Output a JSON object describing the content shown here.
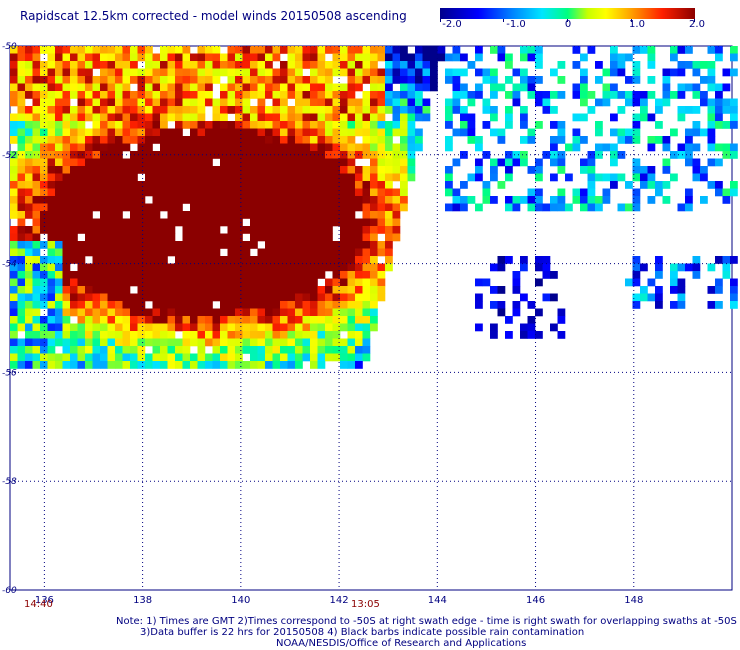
{
  "title": "Rapidscat 12.5km corrected - model winds 20150508 ascending",
  "colorbar": {
    "ticks": [
      {
        "label": "-2.0",
        "value": -2.0
      },
      {
        "label": "-1.0",
        "value": -1.0
      },
      {
        "label": "0",
        "value": 0.0
      },
      {
        "label": "1.0",
        "value": 1.0
      },
      {
        "label": "2.0",
        "value": 2.0
      }
    ],
    "min": -2.0,
    "max": 2.0,
    "colors": [
      "#00008b",
      "#0000ff",
      "#0080ff",
      "#00e5ff",
      "#00ff80",
      "#c8ff00",
      "#ffff00",
      "#ffa000",
      "#ff2000",
      "#8b0000"
    ]
  },
  "map": {
    "lon_range": [
      135.3,
      150.0
    ],
    "lat_range": [
      -60.0,
      -50.0
    ],
    "lon_ticks": [
      "136",
      "138",
      "140",
      "142",
      "144",
      "146",
      "148"
    ],
    "lat_ticks": [
      "-50",
      "-52",
      "-54",
      "-56",
      "-58",
      "-60"
    ],
    "grid_color": "#000080"
  },
  "time_labels": [
    {
      "text": "14:40",
      "lon": 136.0
    },
    {
      "text": "13:05",
      "lon": 142.4
    }
  ],
  "notes": {
    "line1": "Note: 1) Times are GMT 2)Times correspond to -50S at right swath edge - time is right swath for overlapping swaths at -50S",
    "line2": "3)Data buffer is 22 hrs for 20150508 4) Black barbs indicate possible rain contamination",
    "line3": "NOAA/NESDIS/Office of Research and Applications"
  }
}
